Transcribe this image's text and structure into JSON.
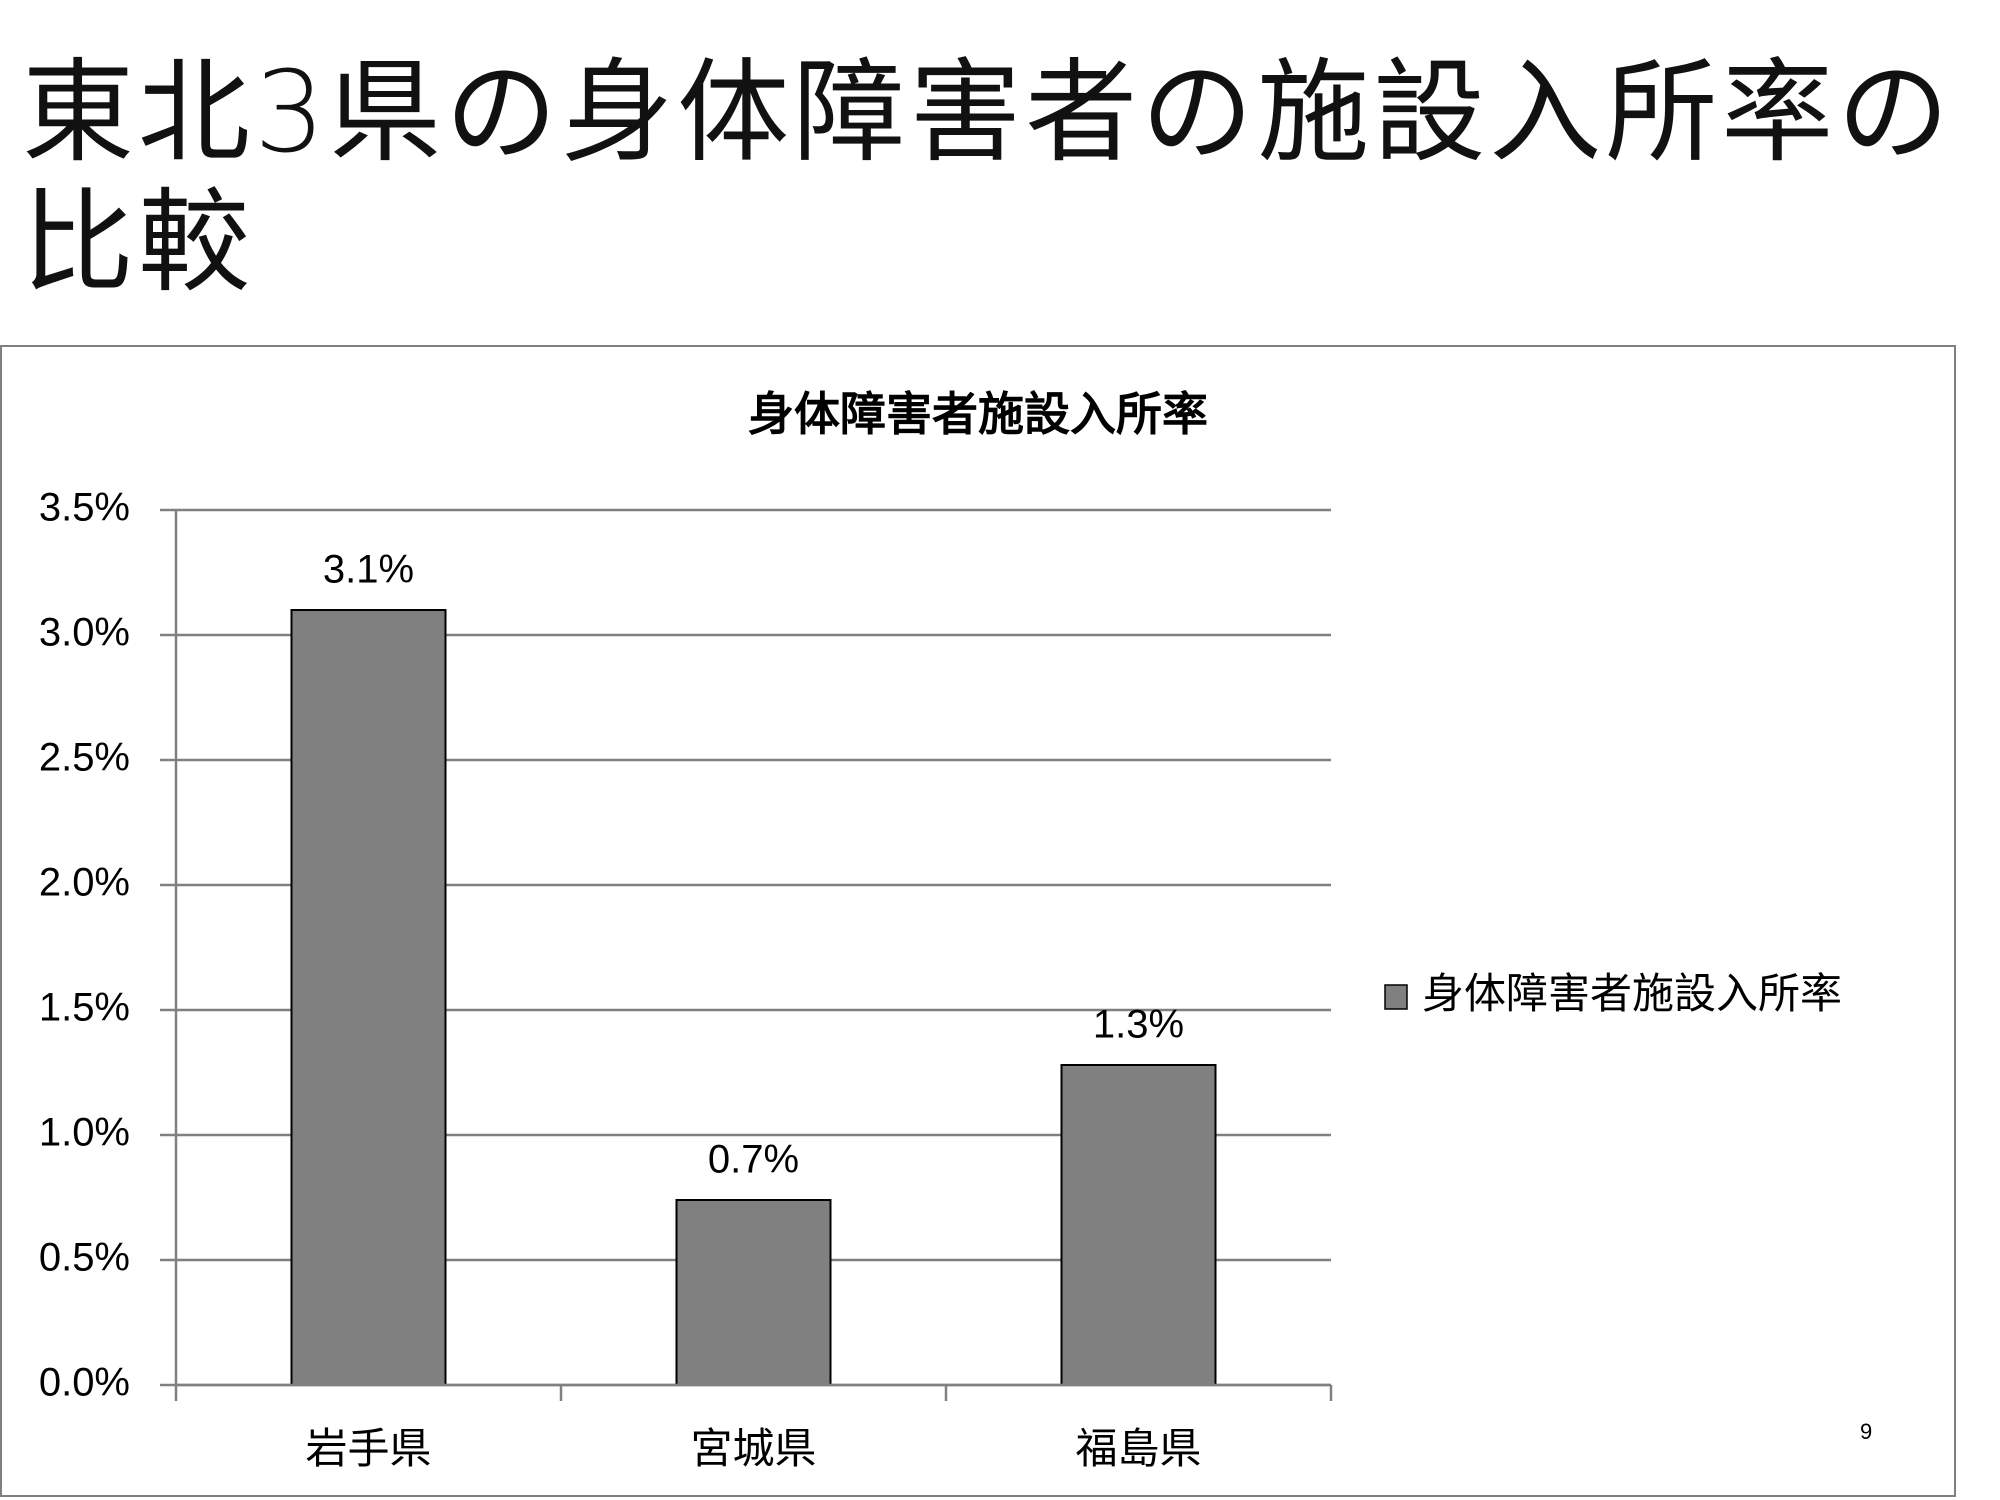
{
  "page": {
    "title": "東北3県の身体障害者の施設入所率の比較",
    "page_number": "9"
  },
  "chart_data": {
    "type": "bar",
    "title": "身体障害者施設入所率",
    "categories": [
      "岩手県",
      "宮城県",
      "福島県"
    ],
    "series": [
      {
        "name": "身体障害者施設入所率",
        "color": "#808080",
        "values": [
          3.1,
          0.74,
          1.28
        ],
        "value_labels": [
          "3.1%",
          "0.7%",
          "1.3%"
        ]
      }
    ],
    "ylim": [
      0,
      3.5
    ],
    "yticks": [
      {
        "value": 0,
        "label": "0.0%"
      },
      {
        "value": 0.5,
        "label": "0.5%"
      },
      {
        "value": 1,
        "label": "1.0%"
      },
      {
        "value": 1.5,
        "label": "1.5%"
      },
      {
        "value": 2,
        "label": "2.0%"
      },
      {
        "value": 2.5,
        "label": "2.5%"
      },
      {
        "value": 3,
        "label": "3.0%"
      },
      {
        "value": 3.5,
        "label": "3.5%"
      }
    ],
    "grid": true,
    "legend": "right"
  }
}
